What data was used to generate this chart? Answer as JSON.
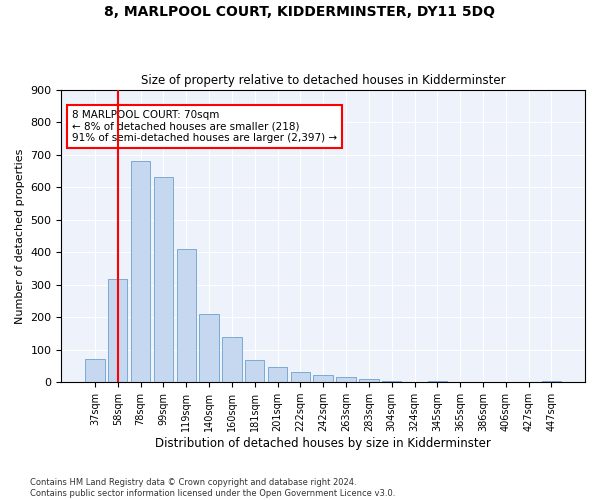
{
  "title": "8, MARLPOOL COURT, KIDDERMINSTER, DY11 5DQ",
  "subtitle": "Size of property relative to detached houses in Kidderminster",
  "xlabel": "Distribution of detached houses by size in Kidderminster",
  "ylabel": "Number of detached properties",
  "categories": [
    "37sqm",
    "58sqm",
    "78sqm",
    "99sqm",
    "119sqm",
    "140sqm",
    "160sqm",
    "181sqm",
    "201sqm",
    "222sqm",
    "242sqm",
    "263sqm",
    "283sqm",
    "304sqm",
    "324sqm",
    "345sqm",
    "365sqm",
    "386sqm",
    "406sqm",
    "427sqm",
    "447sqm"
  ],
  "values": [
    70,
    318,
    680,
    632,
    410,
    210,
    138,
    68,
    47,
    32,
    22,
    15,
    10,
    5,
    0,
    5,
    0,
    0,
    0,
    0,
    5
  ],
  "bar_color": "#c5d8f0",
  "bar_edge_color": "#7baad4",
  "vline_x_index": 1.0,
  "vline_color": "red",
  "annotation_text": "8 MARLPOOL COURT: 70sqm\n← 8% of detached houses are smaller (218)\n91% of semi-detached houses are larger (2,397) →",
  "annotation_box_color": "white",
  "annotation_box_edge_color": "red",
  "ylim": [
    0,
    900
  ],
  "yticks": [
    0,
    100,
    200,
    300,
    400,
    500,
    600,
    700,
    800,
    900
  ],
  "footer_line1": "Contains HM Land Registry data © Crown copyright and database right 2024.",
  "footer_line2": "Contains public sector information licensed under the Open Government Licence v3.0.",
  "bg_color": "#ffffff",
  "plot_bg_color": "#eef2fa"
}
